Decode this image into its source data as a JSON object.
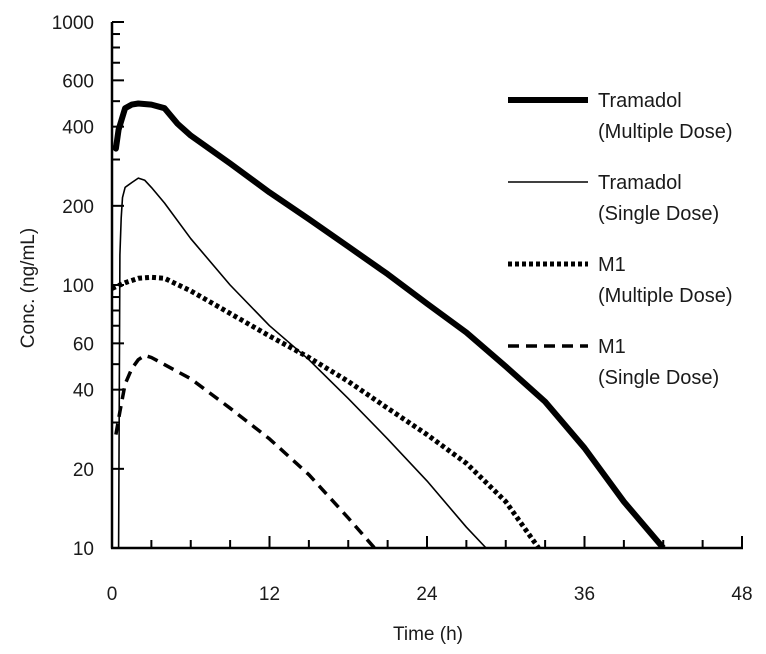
{
  "chart_data": {
    "type": "line",
    "title": "",
    "xlabel": "Time (h)",
    "ylabel": "Conc. (ng/mL)",
    "xlim": [
      0,
      48
    ],
    "ylim": [
      10,
      1000
    ],
    "yscale": "log",
    "grid": false,
    "legend_position": "right",
    "x_ticks": [
      0,
      12,
      24,
      36,
      48
    ],
    "y_tick_labels": [
      10,
      20,
      40,
      60,
      100,
      200,
      400,
      600,
      1000
    ],
    "series": [
      {
        "name": "Tramadol",
        "name_line2": "(Multiple Dose)",
        "style": "thick-solid",
        "color": "#000000",
        "points": [
          [
            0.1,
            340
          ],
          [
            0.3,
            330
          ],
          [
            0.5,
            390
          ],
          [
            1,
            470
          ],
          [
            1.5,
            485
          ],
          [
            2,
            490
          ],
          [
            3,
            485
          ],
          [
            4,
            470
          ],
          [
            5,
            410
          ],
          [
            6,
            370
          ],
          [
            9,
            290
          ],
          [
            12,
            225
          ],
          [
            15,
            178
          ],
          [
            18,
            140
          ],
          [
            21,
            110
          ],
          [
            24,
            85
          ],
          [
            27,
            66
          ],
          [
            30,
            49
          ],
          [
            33,
            36
          ],
          [
            36,
            24
          ],
          [
            39,
            15
          ],
          [
            42,
            10
          ]
        ]
      },
      {
        "name": "Tramadol",
        "name_line2": "(Single Dose)",
        "style": "thin-solid",
        "color": "#000000",
        "points": [
          [
            0.5,
            10
          ],
          [
            0.6,
            130
          ],
          [
            0.7,
            180
          ],
          [
            0.8,
            215
          ],
          [
            1,
            235
          ],
          [
            1.5,
            245
          ],
          [
            2,
            255
          ],
          [
            2.5,
            250
          ],
          [
            3,
            235
          ],
          [
            4,
            205
          ],
          [
            6,
            150
          ],
          [
            9,
            100
          ],
          [
            12,
            70
          ],
          [
            15,
            52
          ],
          [
            18,
            37
          ],
          [
            21,
            26
          ],
          [
            24,
            18
          ],
          [
            27,
            12
          ],
          [
            28.5,
            10
          ]
        ]
      },
      {
        "name": "M1",
        "name_line2": "(Multiple Dose)",
        "style": "dotted",
        "color": "#000000",
        "points": [
          [
            0,
            97
          ],
          [
            1,
            102
          ],
          [
            2,
            106
          ],
          [
            3,
            107
          ],
          [
            4,
            106
          ],
          [
            6,
            95
          ],
          [
            9,
            78
          ],
          [
            12,
            64
          ],
          [
            15,
            53
          ],
          [
            18,
            43
          ],
          [
            21,
            34
          ],
          [
            24,
            27
          ],
          [
            27,
            21
          ],
          [
            30,
            15
          ],
          [
            32.5,
            10
          ]
        ]
      },
      {
        "name": "M1",
        "name_line2": "(Single Dose)",
        "style": "dashed",
        "color": "#000000",
        "points": [
          [
            0.3,
            27
          ],
          [
            0.6,
            33
          ],
          [
            1,
            42
          ],
          [
            1.5,
            48
          ],
          [
            2,
            52
          ],
          [
            2.5,
            54
          ],
          [
            3,
            53
          ],
          [
            6,
            44
          ],
          [
            9,
            34
          ],
          [
            12,
            26
          ],
          [
            15,
            19
          ],
          [
            18,
            13
          ],
          [
            20,
            10
          ]
        ]
      }
    ]
  }
}
